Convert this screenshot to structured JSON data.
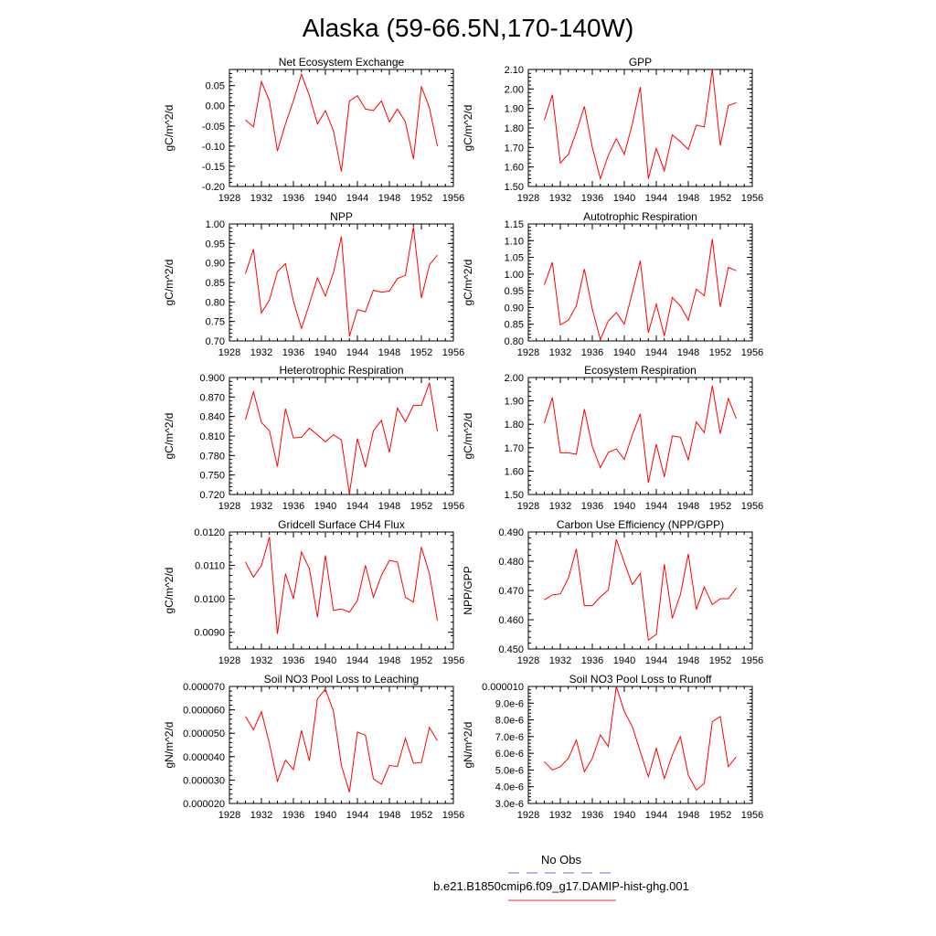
{
  "figure": {
    "title": "Alaska (59-66.5N,170-140W)",
    "legend": [
      {
        "label": "No Obs",
        "color": "#6b6bd6",
        "style": "dashed"
      },
      {
        "label": "b.e21.B1850cmip6.f09_g17.DAMIP-hist-ghg.001",
        "color": "#e03030",
        "style": "solid"
      }
    ],
    "series_color": "#ff0000"
  },
  "chart_data": [
    {
      "type": "line",
      "title": "Net Ecosystem Exchange",
      "ylabel": "gC/m^2/d",
      "xlim": [
        1928,
        1956
      ],
      "xticks": [
        "1928",
        "1932",
        "1936",
        "1940",
        "1944",
        "1948",
        "1952",
        "1956"
      ],
      "ylim": [
        -0.2,
        0.09
      ],
      "yticks": [
        "-0.20",
        "-0.15",
        "-0.10",
        "-0.05",
        "0.00",
        "0.05"
      ],
      "ytick_values": [
        -0.2,
        -0.15,
        -0.1,
        -0.05,
        0.0,
        0.05
      ],
      "x": [
        1930,
        1931,
        1932,
        1933,
        1934,
        1935,
        1936,
        1937,
        1938,
        1939,
        1940,
        1941,
        1942,
        1943,
        1944,
        1945,
        1946,
        1947,
        1948,
        1949,
        1950,
        1951,
        1952,
        1953,
        1954
      ],
      "values": [
        -0.035,
        -0.052,
        0.06,
        0.012,
        -0.112,
        -0.045,
        0.012,
        0.078,
        0.025,
        -0.045,
        -0.012,
        -0.062,
        -0.163,
        0.012,
        0.025,
        -0.008,
        -0.012,
        0.012,
        -0.04,
        -0.008,
        -0.04,
        -0.132,
        0.048,
        -0.005,
        -0.1
      ]
    },
    {
      "type": "line",
      "title": "GPP",
      "ylabel": "gC/m^2/d",
      "xlim": [
        1928,
        1956
      ],
      "xticks": [
        "1928",
        "1932",
        "1936",
        "1940",
        "1944",
        "1948",
        "1952",
        "1956"
      ],
      "ylim": [
        1.5,
        2.1
      ],
      "yticks": [
        "1.50",
        "1.60",
        "1.70",
        "1.80",
        "1.90",
        "2.00",
        "2.10"
      ],
      "ytick_values": [
        1.5,
        1.6,
        1.7,
        1.8,
        1.9,
        2.0,
        2.1
      ],
      "x": [
        1930,
        1931,
        1932,
        1933,
        1934,
        1935,
        1936,
        1937,
        1938,
        1939,
        1940,
        1941,
        1942,
        1943,
        1944,
        1945,
        1946,
        1947,
        1948,
        1949,
        1950,
        1951,
        1952,
        1953,
        1954
      ],
      "values": [
        1.84,
        1.97,
        1.62,
        1.665,
        1.78,
        1.91,
        1.7,
        1.54,
        1.66,
        1.745,
        1.665,
        1.82,
        2.01,
        1.54,
        1.695,
        1.58,
        1.765,
        1.73,
        1.69,
        1.815,
        1.805,
        2.1,
        1.71,
        1.915,
        1.93
      ]
    },
    {
      "type": "line",
      "title": "NPP",
      "ylabel": "gC/m^2/d",
      "xlim": [
        1928,
        1956
      ],
      "xticks": [
        "1928",
        "1932",
        "1936",
        "1940",
        "1944",
        "1948",
        "1952",
        "1956"
      ],
      "ylim": [
        0.7,
        1.0
      ],
      "yticks": [
        "0.70",
        "0.75",
        "0.80",
        "0.85",
        "0.90",
        "0.95",
        "1.00"
      ],
      "ytick_values": [
        0.7,
        0.75,
        0.8,
        0.85,
        0.9,
        0.95,
        1.0
      ],
      "x": [
        1930,
        1931,
        1932,
        1933,
        1934,
        1935,
        1936,
        1937,
        1938,
        1939,
        1940,
        1941,
        1942,
        1943,
        1944,
        1945,
        1946,
        1947,
        1948,
        1949,
        1950,
        1951,
        1952,
        1953,
        1954
      ],
      "values": [
        0.872,
        0.935,
        0.772,
        0.805,
        0.878,
        0.898,
        0.802,
        0.732,
        0.795,
        0.862,
        0.815,
        0.875,
        0.968,
        0.712,
        0.78,
        0.775,
        0.83,
        0.825,
        0.828,
        0.86,
        0.868,
        0.992,
        0.81,
        0.895,
        0.92
      ]
    },
    {
      "type": "line",
      "title": "Autotrophic Respiration",
      "ylabel": "gC/m^2/d",
      "xlim": [
        1928,
        1956
      ],
      "xticks": [
        "1928",
        "1932",
        "1936",
        "1940",
        "1944",
        "1948",
        "1952",
        "1956"
      ],
      "ylim": [
        0.8,
        1.15
      ],
      "yticks": [
        "0.80",
        "0.85",
        "0.90",
        "0.95",
        "1.00",
        "1.05",
        "1.10",
        "1.15"
      ],
      "ytick_values": [
        0.8,
        0.85,
        0.9,
        0.95,
        1.0,
        1.05,
        1.1,
        1.15
      ],
      "x": [
        1930,
        1931,
        1932,
        1933,
        1934,
        1935,
        1936,
        1937,
        1938,
        1939,
        1940,
        1941,
        1942,
        1943,
        1944,
        1945,
        1946,
        1947,
        1948,
        1949,
        1950,
        1951,
        1952,
        1953,
        1954
      ],
      "values": [
        0.968,
        1.035,
        0.848,
        0.862,
        0.905,
        1.015,
        0.895,
        0.805,
        0.86,
        0.885,
        0.85,
        0.945,
        1.04,
        0.825,
        0.91,
        0.815,
        0.93,
        0.905,
        0.862,
        0.955,
        0.935,
        1.105,
        0.902,
        1.02,
        1.01
      ]
    },
    {
      "type": "line",
      "title": "Heterotrophic Respiration",
      "ylabel": "gC/m^2/d",
      "xlim": [
        1928,
        1956
      ],
      "xticks": [
        "1928",
        "1932",
        "1936",
        "1940",
        "1944",
        "1948",
        "1952",
        "1956"
      ],
      "ylim": [
        0.72,
        0.9
      ],
      "yticks": [
        "0.720",
        "0.750",
        "0.780",
        "0.810",
        "0.840",
        "0.870",
        "0.900"
      ],
      "ytick_values": [
        0.72,
        0.75,
        0.78,
        0.81,
        0.84,
        0.87,
        0.9
      ],
      "x": [
        1930,
        1931,
        1932,
        1933,
        1934,
        1935,
        1936,
        1937,
        1938,
        1939,
        1940,
        1941,
        1942,
        1943,
        1944,
        1945,
        1946,
        1947,
        1948,
        1949,
        1950,
        1951,
        1952,
        1953,
        1954
      ],
      "values": [
        0.835,
        0.878,
        0.831,
        0.818,
        0.763,
        0.852,
        0.807,
        0.808,
        0.822,
        0.812,
        0.801,
        0.812,
        0.804,
        0.721,
        0.806,
        0.762,
        0.818,
        0.834,
        0.785,
        0.853,
        0.832,
        0.857,
        0.857,
        0.892,
        0.817
      ]
    },
    {
      "type": "line",
      "title": "Ecosystem Respiration",
      "ylabel": "gC/m^2/d",
      "xlim": [
        1928,
        1956
      ],
      "xticks": [
        "1928",
        "1932",
        "1936",
        "1940",
        "1944",
        "1948",
        "1952",
        "1956"
      ],
      "ylim": [
        1.5,
        2.0
      ],
      "yticks": [
        "1.50",
        "1.60",
        "1.70",
        "1.80",
        "1.90",
        "2.00"
      ],
      "ytick_values": [
        1.5,
        1.6,
        1.7,
        1.8,
        1.9,
        2.0
      ],
      "x": [
        1930,
        1931,
        1932,
        1933,
        1934,
        1935,
        1936,
        1937,
        1938,
        1939,
        1940,
        1941,
        1942,
        1943,
        1944,
        1945,
        1946,
        1947,
        1948,
        1949,
        1950,
        1951,
        1952,
        1953,
        1954
      ],
      "values": [
        1.805,
        1.915,
        1.678,
        1.678,
        1.672,
        1.865,
        1.705,
        1.615,
        1.68,
        1.695,
        1.65,
        1.755,
        1.845,
        1.55,
        1.715,
        1.575,
        1.75,
        1.745,
        1.648,
        1.81,
        1.765,
        1.965,
        1.76,
        1.91,
        1.825
      ]
    },
    {
      "type": "line",
      "title": "Gridcell Surface CH4 Flux",
      "ylabel": "gC/m^2/d",
      "xlim": [
        1928,
        1956
      ],
      "xticks": [
        "1928",
        "1932",
        "1936",
        "1940",
        "1944",
        "1948",
        "1952",
        "1956"
      ],
      "ylim": [
        0.0085,
        0.012
      ],
      "yticks": [
        "0.0090",
        "0.0100",
        "0.0110",
        "0.0120"
      ],
      "ytick_values": [
        0.009,
        0.01,
        0.011,
        0.012
      ],
      "x": [
        1930,
        1931,
        1932,
        1933,
        1934,
        1935,
        1936,
        1937,
        1938,
        1939,
        1940,
        1941,
        1942,
        1943,
        1944,
        1945,
        1946,
        1947,
        1948,
        1949,
        1950,
        1951,
        1952,
        1953,
        1954
      ],
      "values": [
        0.0111,
        0.01065,
        0.011,
        0.01185,
        0.00895,
        0.01075,
        0.01,
        0.0114,
        0.0109,
        0.00945,
        0.0113,
        0.00965,
        0.0097,
        0.0096,
        0.00995,
        0.011,
        0.01005,
        0.0107,
        0.01115,
        0.0111,
        0.01005,
        0.0099,
        0.01155,
        0.01075,
        0.00935
      ]
    },
    {
      "type": "line",
      "title": "Carbon Use Efficiency (NPP/GPP)",
      "ylabel": "NPP/GPP",
      "xlim": [
        1928,
        1956
      ],
      "xticks": [
        "1928",
        "1932",
        "1936",
        "1940",
        "1944",
        "1948",
        "1952",
        "1956"
      ],
      "ylim": [
        0.45,
        0.49
      ],
      "yticks": [
        "0.450",
        "0.460",
        "0.470",
        "0.480",
        "0.490"
      ],
      "ytick_values": [
        0.45,
        0.46,
        0.47,
        0.48,
        0.49
      ],
      "x": [
        1930,
        1931,
        1932,
        1933,
        1934,
        1935,
        1936,
        1937,
        1938,
        1939,
        1940,
        1941,
        1942,
        1943,
        1944,
        1945,
        1946,
        1947,
        1948,
        1949,
        1950,
        1951,
        1952,
        1953,
        1954
      ],
      "values": [
        0.4668,
        0.4685,
        0.4688,
        0.4742,
        0.4842,
        0.4648,
        0.4648,
        0.4678,
        0.4702,
        0.4875,
        0.4795,
        0.472,
        0.4758,
        0.453,
        0.455,
        0.479,
        0.4605,
        0.4685,
        0.4825,
        0.4635,
        0.4712,
        0.4652,
        0.4672,
        0.4672,
        0.4708
      ]
    },
    {
      "type": "line",
      "title": "Soil NO3 Pool Loss to Leaching",
      "ylabel": "gN/m^2/d",
      "xlim": [
        1928,
        1956
      ],
      "xticks": [
        "1928",
        "1932",
        "1936",
        "1940",
        "1944",
        "1948",
        "1952",
        "1956"
      ],
      "ylim": [
        2e-05,
        7e-05
      ],
      "yticks": [
        "0.000020",
        "0.000030",
        "0.000040",
        "0.000050",
        "0.000060",
        "0.000070"
      ],
      "ytick_values": [
        2e-05,
        3e-05,
        4e-05,
        5e-05,
        6e-05,
        7e-05
      ],
      "x": [
        1930,
        1931,
        1932,
        1933,
        1934,
        1935,
        1936,
        1937,
        1938,
        1939,
        1940,
        1941,
        1942,
        1943,
        1944,
        1945,
        1946,
        1947,
        1948,
        1949,
        1950,
        1951,
        1952,
        1953,
        1954
      ],
      "values": [
        5.72e-05,
        5.15e-05,
        5.92e-05,
        4.55e-05,
        2.95e-05,
        3.85e-05,
        3.45e-05,
        5.12e-05,
        3.82e-05,
        6.48e-05,
        6.88e-05,
        5.95e-05,
        3.62e-05,
        2.48e-05,
        5.05e-05,
        4.92e-05,
        3.05e-05,
        2.82e-05,
        3.62e-05,
        3.58e-05,
        4.78e-05,
        3.72e-05,
        3.75e-05,
        5.25e-05,
        4.68e-05
      ]
    },
    {
      "type": "line",
      "title": "Soil NO3 Pool Loss to Runoff",
      "ylabel": "gN/m^2/d",
      "xlim": [
        1928,
        1956
      ],
      "xticks": [
        "1928",
        "1932",
        "1936",
        "1940",
        "1944",
        "1948",
        "1952",
        "1956"
      ],
      "ylim": [
        3e-06,
        1e-05
      ],
      "yticks": [
        "3.0e-6",
        "4.0e-6",
        "5.0e-6",
        "6.0e-6",
        "7.0e-6",
        "8.0e-6",
        "9.0e-6",
        "0.000010"
      ],
      "ytick_values": [
        3e-06,
        4e-06,
        5e-06,
        6e-06,
        7e-06,
        8e-06,
        9e-06,
        1e-05
      ],
      "x": [
        1930,
        1931,
        1932,
        1933,
        1934,
        1935,
        1936,
        1937,
        1938,
        1939,
        1940,
        1941,
        1942,
        1943,
        1944,
        1945,
        1946,
        1947,
        1948,
        1949,
        1950,
        1951,
        1952,
        1953,
        1954
      ],
      "values": [
        5.5e-06,
        5e-06,
        5.2e-06,
        5.7e-06,
        6.8e-06,
        4.9e-06,
        5.7e-06,
        7.1e-06,
        6.4e-06,
        1e-05,
        8.5e-06,
        7.6e-06,
        6.1e-06,
        4.6e-06,
        6.3e-06,
        4.5e-06,
        5.9e-06,
        7e-06,
        4.7e-06,
        3.8e-06,
        4.2e-06,
        7.9e-06,
        8.2e-06,
        5.2e-06,
        5.8e-06
      ]
    }
  ]
}
